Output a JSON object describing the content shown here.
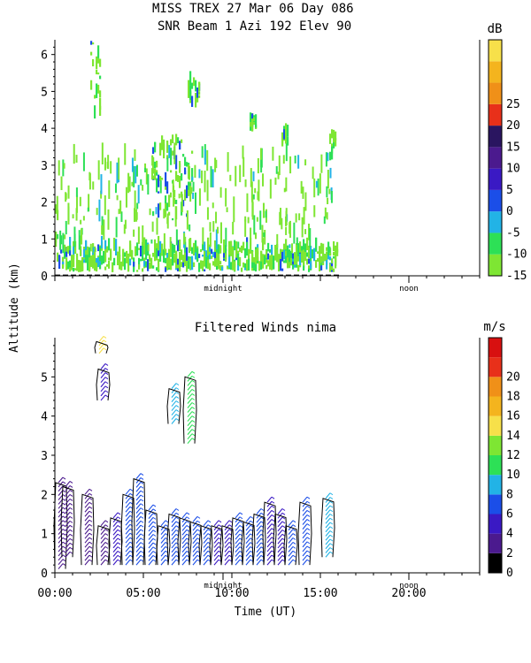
{
  "header": {
    "title_line1": "MISS TREX   27 Mar 06 Day 086",
    "title_line2": "SNR Beam 1 Azi 192 Elev 90"
  },
  "y_axis_label": "Altitude (km)",
  "x_axis_label": "Time (UT)",
  "chart_data": [
    {
      "type": "heatmap",
      "title": "SNR Beam 1 Azi 192 Elev 90",
      "ylabel": "Altitude (km)",
      "ylim": [
        0,
        6.4
      ],
      "yticks": [
        "0",
        "1",
        "2",
        "3",
        "4",
        "5",
        "6"
      ],
      "xlim": [
        0,
        24
      ],
      "x_markers": [
        {
          "x": 9.5,
          "label": "midnight"
        },
        {
          "x": 20,
          "label": "noon"
        }
      ],
      "colorbar": {
        "unit": "dB",
        "ticks": [
          "-15",
          "-10",
          "-5",
          "0",
          "5",
          "10",
          "15",
          "20",
          "25"
        ],
        "colors": [
          "#7ee633",
          "#2de056",
          "#22b3e6",
          "#1b4ee8",
          "#3a19c4",
          "#4b1a8e",
          "#2a1560",
          "#e8301a",
          "#f09018",
          "#f4b41e",
          "#f7e04a"
        ]
      },
      "data_time_range_hours": [
        0,
        16
      ],
      "approx_cells": [
        {
          "t0": 0.0,
          "t1": 0.4,
          "z0": 0.1,
          "z1": 1.9,
          "level": "-5"
        },
        {
          "t0": 0.4,
          "t1": 16.0,
          "z0": 0.1,
          "z1": 0.7,
          "level": "-5"
        },
        {
          "t0": 2.0,
          "t1": 2.6,
          "z0": 4.2,
          "z1": 6.3,
          "level": "-15"
        },
        {
          "t0": 5.5,
          "t1": 7.8,
          "z0": 1.5,
          "z1": 3.6,
          "level": "0"
        },
        {
          "t0": 7.5,
          "t1": 8.2,
          "z0": 4.5,
          "z1": 5.2,
          "level": "-15"
        },
        {
          "t0": 11.0,
          "t1": 11.4,
          "z0": 3.9,
          "z1": 4.2,
          "level": "-15"
        },
        {
          "t0": 12.8,
          "t1": 13.2,
          "z0": 3.4,
          "z1": 4.0,
          "level": "-15"
        },
        {
          "t0": 15.5,
          "t1": 15.9,
          "z0": 3.1,
          "z1": 3.8,
          "level": "-15"
        }
      ]
    },
    {
      "type": "scatter",
      "title": "Filtered Winds nima",
      "xlabel": "Time (UT)",
      "ylabel": "Altitude (km)",
      "ylim": [
        0,
        6.0
      ],
      "yticks": [
        "0",
        "1",
        "2",
        "3",
        "4",
        "5"
      ],
      "xlim": [
        0,
        24
      ],
      "xticks": [
        "00:00",
        "05:00",
        "10:00",
        "15:00",
        "20:00"
      ],
      "x_markers": [
        {
          "x": 9.5,
          "label": "midnight"
        },
        {
          "x": 20,
          "label": "noon"
        }
      ],
      "colorbar": {
        "unit": "m/s",
        "ticks": [
          "0",
          "2",
          "4",
          "6",
          "8",
          "10",
          "12",
          "14",
          "16",
          "18",
          "20"
        ],
        "colors": [
          "#000000",
          "#4b1a8e",
          "#3a19c4",
          "#1b4ee8",
          "#22b3e6",
          "#2de056",
          "#7ee633",
          "#f7e04a",
          "#f4b41e",
          "#f09018",
          "#e8301a",
          "#d81010"
        ]
      },
      "data_time_range_hours": [
        0,
        16
      ],
      "barb_columns": [
        {
          "t": 0.2,
          "z0": 0.1,
          "z1": 2.3,
          "level": "2"
        },
        {
          "t": 0.6,
          "z0": 0.4,
          "z1": 2.2,
          "level": "2"
        },
        {
          "t": 1.7,
          "z0": 0.2,
          "z1": 2.0,
          "level": "2"
        },
        {
          "t": 2.6,
          "z0": 0.2,
          "z1": 1.2,
          "level": "2"
        },
        {
          "t": 2.6,
          "z0": 4.4,
          "z1": 5.2,
          "level": "4"
        },
        {
          "t": 2.5,
          "z0": 5.6,
          "z1": 5.9,
          "level": "14"
        },
        {
          "t": 3.3,
          "z0": 0.2,
          "z1": 1.4,
          "level": "4"
        },
        {
          "t": 4.0,
          "z0": 0.2,
          "z1": 2.0,
          "level": "6"
        },
        {
          "t": 4.6,
          "z0": 0.2,
          "z1": 2.4,
          "level": "6"
        },
        {
          "t": 5.3,
          "z0": 0.2,
          "z1": 1.6,
          "level": "6"
        },
        {
          "t": 6.0,
          "z0": 0.2,
          "z1": 1.2,
          "level": "6"
        },
        {
          "t": 6.6,
          "z0": 0.2,
          "z1": 1.5,
          "level": "6"
        },
        {
          "t": 7.2,
          "z0": 0.2,
          "z1": 1.4,
          "level": "6"
        },
        {
          "t": 6.6,
          "z0": 3.8,
          "z1": 4.7,
          "level": "8"
        },
        {
          "t": 7.5,
          "z0": 3.3,
          "z1": 5.0,
          "level": "10"
        },
        {
          "t": 7.8,
          "z0": 0.2,
          "z1": 1.3,
          "level": "6"
        },
        {
          "t": 8.4,
          "z0": 0.2,
          "z1": 1.2,
          "level": "6"
        },
        {
          "t": 9.0,
          "z0": 0.2,
          "z1": 1.2,
          "level": "4"
        },
        {
          "t": 9.6,
          "z0": 0.2,
          "z1": 1.2,
          "level": "4"
        },
        {
          "t": 10.2,
          "z0": 0.2,
          "z1": 1.4,
          "level": "6"
        },
        {
          "t": 10.8,
          "z0": 0.2,
          "z1": 1.3,
          "level": "6"
        },
        {
          "t": 11.4,
          "z0": 0.2,
          "z1": 1.5,
          "level": "6"
        },
        {
          "t": 12.0,
          "z0": 0.2,
          "z1": 1.8,
          "level": "4"
        },
        {
          "t": 12.6,
          "z0": 0.2,
          "z1": 1.5,
          "level": "4"
        },
        {
          "t": 13.2,
          "z0": 0.2,
          "z1": 1.2,
          "level": "6"
        },
        {
          "t": 14.0,
          "z0": 0.2,
          "z1": 1.8,
          "level": "6"
        },
        {
          "t": 15.3,
          "z0": 0.4,
          "z1": 1.9,
          "level": "8"
        }
      ]
    }
  ]
}
